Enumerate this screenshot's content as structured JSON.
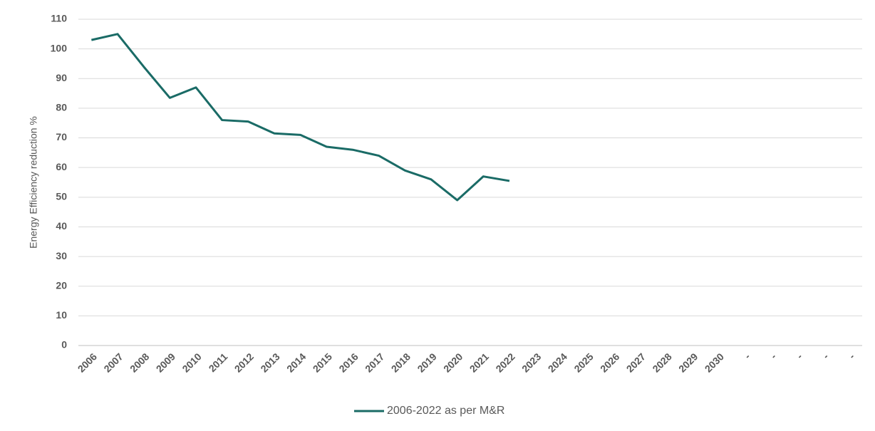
{
  "chart_data": {
    "type": "line",
    "y_label": "Energy Efficiency reduction %",
    "categories": [
      "2006",
      "2007",
      "2008",
      "2009",
      "2010",
      "2011",
      "2012",
      "2013",
      "2014",
      "2015",
      "2016",
      "2017",
      "2018",
      "2019",
      "2020",
      "2021",
      "2022",
      "2023",
      "2024",
      "2025",
      "2026",
      "2027",
      "2028",
      "2029",
      "2030",
      "-",
      "-",
      "-",
      "-",
      "-"
    ],
    "series": [
      {
        "name": "2006-2022 as per M&R",
        "color": "#1a6b66",
        "values": [
          103,
          105,
          94,
          83.5,
          87,
          76,
          75.5,
          71.5,
          71,
          67,
          66,
          64,
          59,
          56,
          49,
          57,
          55.5,
          null,
          null,
          null,
          null,
          null,
          null,
          null,
          null,
          null,
          null,
          null,
          null,
          null
        ]
      }
    ],
    "ylim": [
      0,
      110
    ],
    "yticks": [
      0,
      10,
      20,
      30,
      40,
      50,
      60,
      70,
      80,
      90,
      100,
      110
    ],
    "grid": true,
    "legend": "bottom"
  }
}
